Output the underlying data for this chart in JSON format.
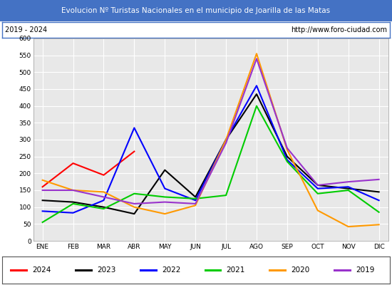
{
  "title": "Evolucion Nº Turistas Nacionales en el municipio de Joarilla de las Matas",
  "subtitle_left": "2019 - 2024",
  "subtitle_right": "http://www.foro-ciudad.com",
  "months": [
    "ENE",
    "FEB",
    "MAR",
    "ABR",
    "MAY",
    "JUN",
    "JUL",
    "AGO",
    "SEP",
    "OCT",
    "NOV",
    "DIC"
  ],
  "series": {
    "2024": [
      160,
      230,
      195,
      265,
      null,
      null,
      null,
      null,
      null,
      null,
      null,
      null
    ],
    "2023": [
      120,
      115,
      100,
      80,
      210,
      130,
      300,
      435,
      250,
      165,
      155,
      145
    ],
    "2022": [
      88,
      83,
      120,
      335,
      155,
      120,
      300,
      460,
      240,
      155,
      160,
      120
    ],
    "2021": [
      55,
      110,
      95,
      140,
      130,
      125,
      135,
      400,
      235,
      140,
      150,
      85
    ],
    "2020": [
      180,
      150,
      145,
      100,
      80,
      105,
      300,
      555,
      270,
      90,
      42,
      48
    ],
    "2019": [
      150,
      150,
      130,
      110,
      115,
      110,
      290,
      540,
      275,
      165,
      175,
      182
    ]
  },
  "colors": {
    "2024": "#ff0000",
    "2023": "#000000",
    "2022": "#0000ff",
    "2021": "#00cc00",
    "2020": "#ff9900",
    "2019": "#9933cc"
  },
  "ylim": [
    0,
    600
  ],
  "yticks": [
    0,
    50,
    100,
    150,
    200,
    250,
    300,
    350,
    400,
    450,
    500,
    550,
    600
  ],
  "title_bg": "#4472c4",
  "title_color": "#ffffff",
  "plot_bg": "#e8e8e8",
  "grid_color": "#ffffff",
  "border_color": "#4472c4",
  "legend_years": [
    "2024",
    "2023",
    "2022",
    "2021",
    "2020",
    "2019"
  ]
}
